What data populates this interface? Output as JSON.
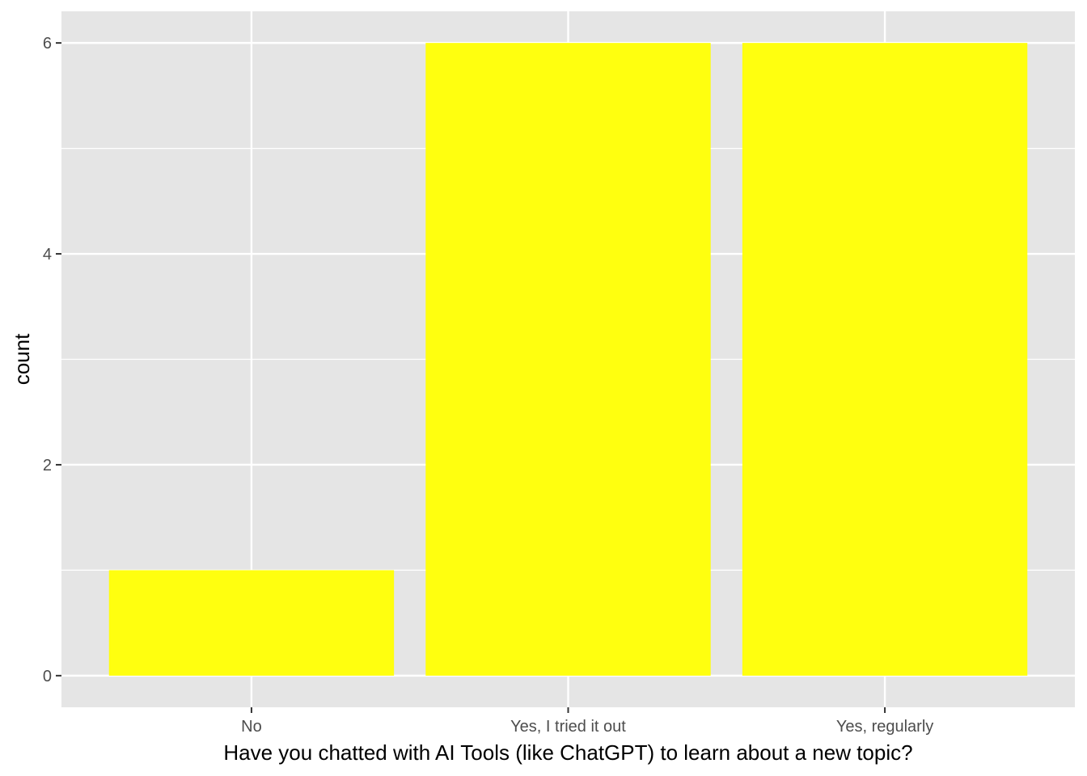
{
  "chart_data": {
    "type": "bar",
    "categories": [
      "No",
      "Yes, I tried it out",
      "Yes, regularly"
    ],
    "values": [
      1,
      6,
      6
    ],
    "title": "",
    "xlabel": "Have you chatted with AI Tools (like ChatGPT) to learn about a new topic?",
    "ylabel": "count",
    "ylim": [
      -0.3,
      6.3
    ],
    "yticks": [
      0,
      2,
      4,
      6
    ],
    "grid": true,
    "colors": {
      "bar": "#FFFF0F",
      "panel": "#E5E5E5",
      "grid": "#FFFFFF",
      "tick": "#333333"
    }
  }
}
